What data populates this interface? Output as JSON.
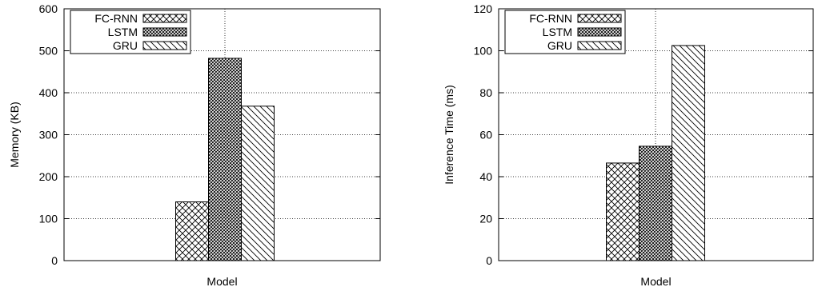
{
  "chart_data": [
    {
      "type": "bar",
      "categories": [
        "Model"
      ],
      "xlabel": "Model",
      "ylabel": "Memory (KB)",
      "ylim": [
        0,
        600
      ],
      "yticks": [
        0,
        100,
        200,
        300,
        400,
        500,
        600
      ],
      "grid": true,
      "legend_position": "top-left",
      "series": [
        {
          "name": "FC-RNN",
          "values": [
            140
          ],
          "pattern": "crosshatch"
        },
        {
          "name": "LSTM",
          "values": [
            482
          ],
          "pattern": "dense-crosshatch"
        },
        {
          "name": "GRU",
          "values": [
            368
          ],
          "pattern": "diagonal"
        }
      ]
    },
    {
      "type": "bar",
      "categories": [
        "Model"
      ],
      "xlabel": "Model",
      "ylabel": "Inference Time (ms)",
      "ylim": [
        0,
        120
      ],
      "yticks": [
        0,
        20,
        40,
        60,
        80,
        100,
        120
      ],
      "grid": true,
      "legend_position": "top-left",
      "series": [
        {
          "name": "FC-RNN",
          "values": [
            46.5
          ],
          "pattern": "crosshatch"
        },
        {
          "name": "LSTM",
          "values": [
            54.5
          ],
          "pattern": "dense-crosshatch"
        },
        {
          "name": "GRU",
          "values": [
            102.5
          ],
          "pattern": "diagonal"
        }
      ]
    }
  ]
}
